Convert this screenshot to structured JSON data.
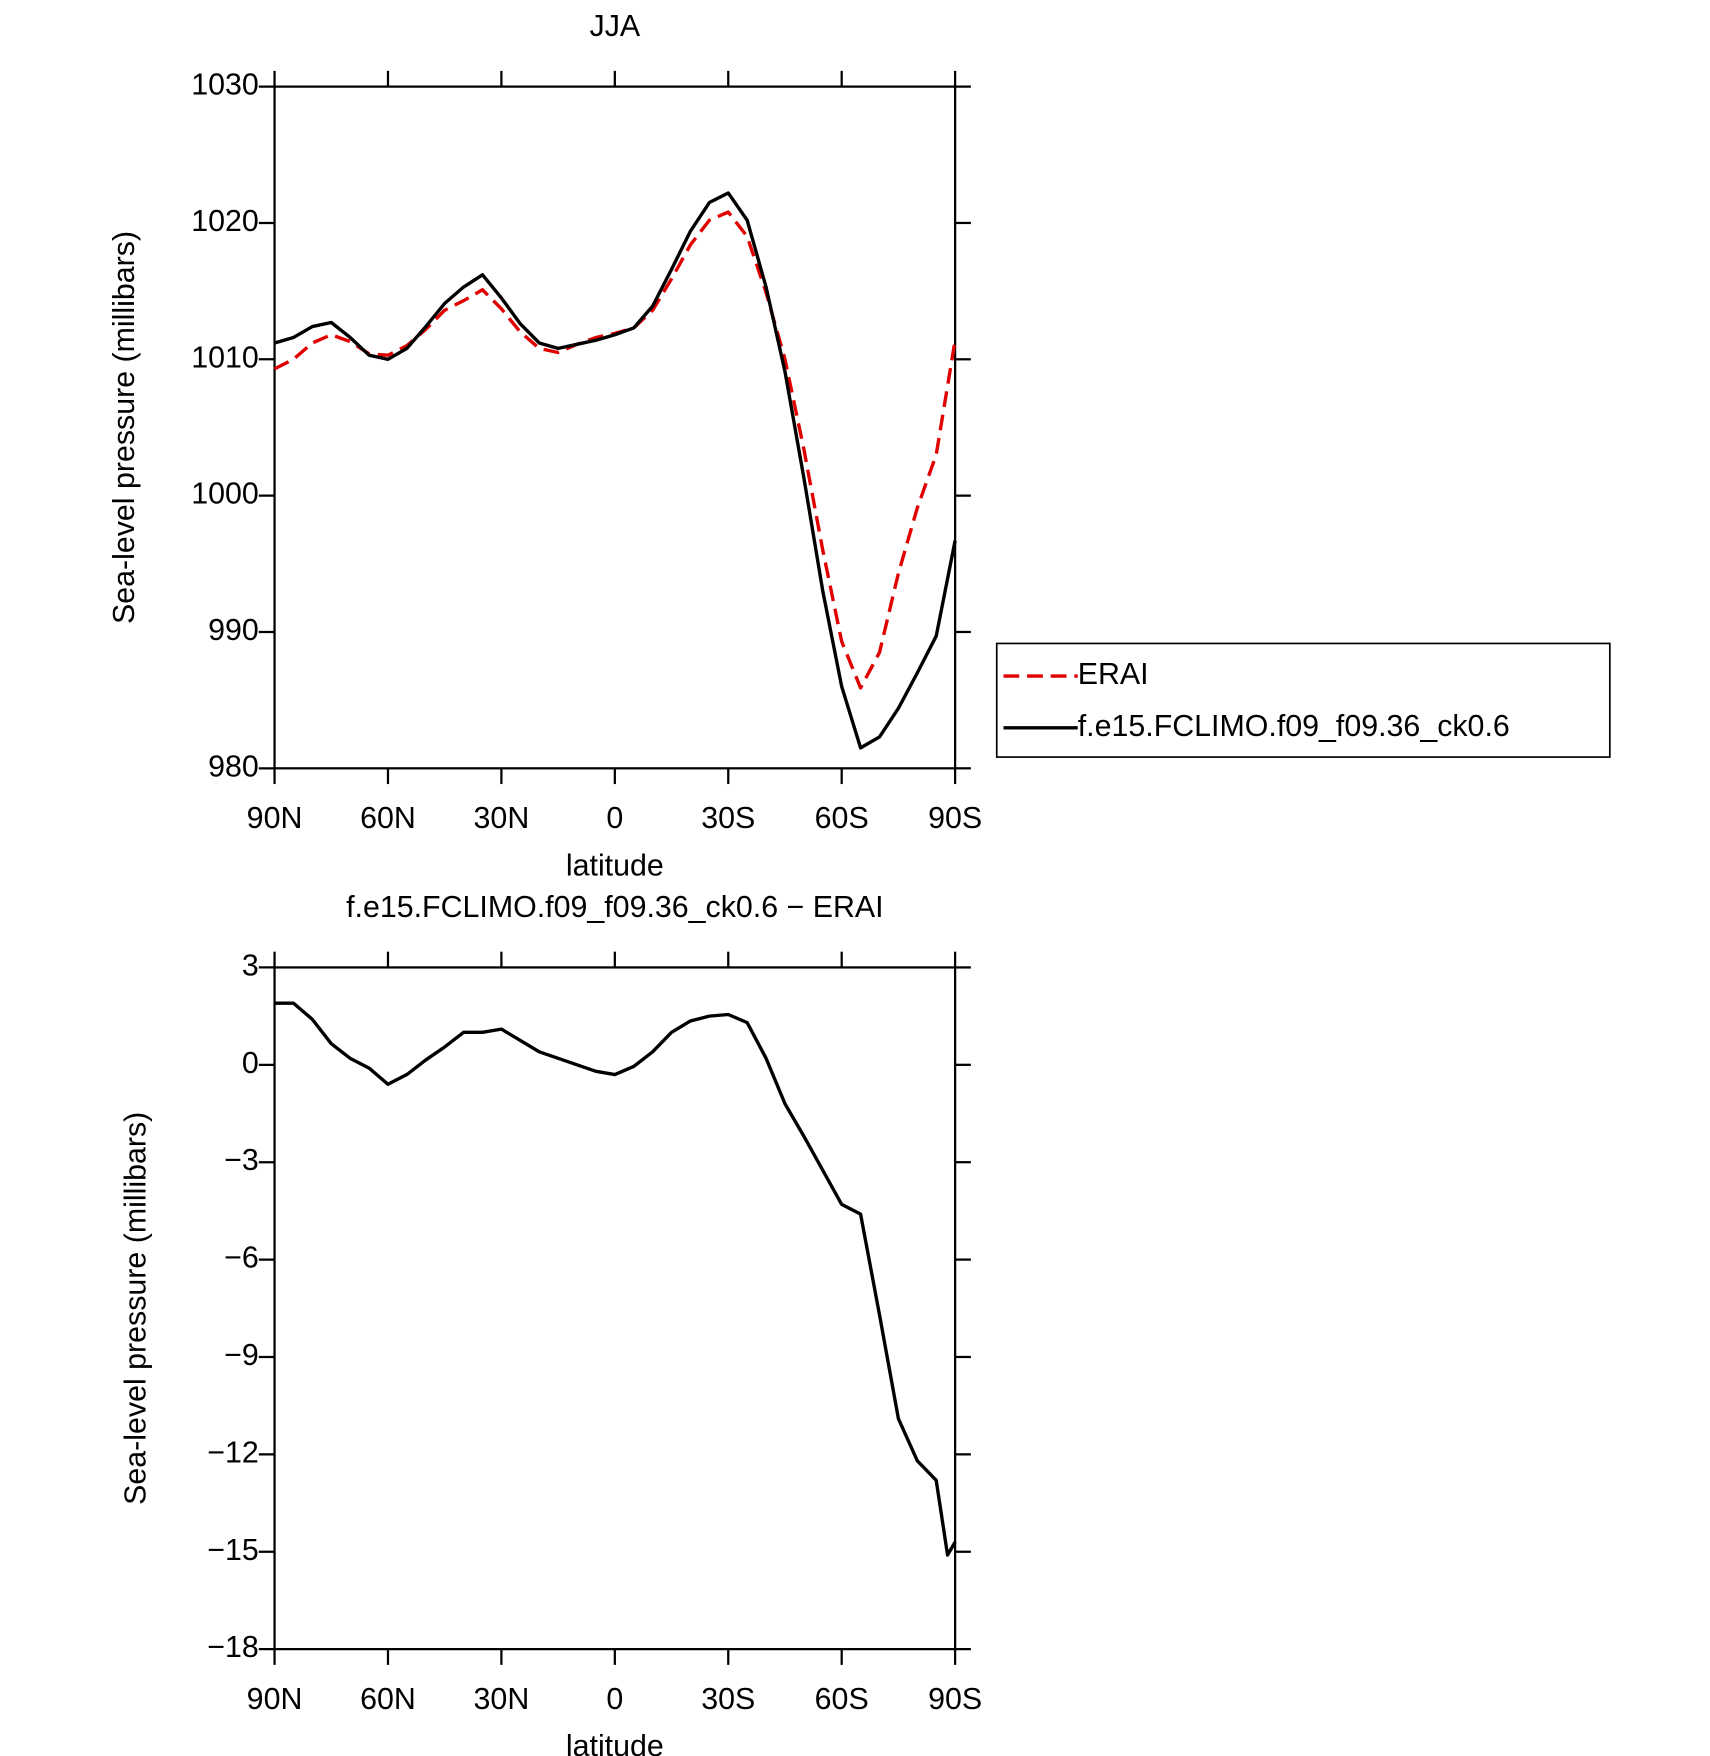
{
  "chart_data": [
    {
      "type": "line",
      "title": "JJA",
      "xlabel": "latitude",
      "ylabel": "Sea-level pressure (millibars)",
      "x": [
        90,
        85,
        80,
        75,
        70,
        65,
        60,
        55,
        50,
        45,
        40,
        35,
        30,
        25,
        20,
        15,
        10,
        5,
        0,
        -5,
        -10,
        -15,
        -20,
        -25,
        -30,
        -35,
        -40,
        -45,
        -50,
        -55,
        -60,
        -65,
        -70,
        -75,
        -80,
        -85,
        -90
      ],
      "series": [
        {
          "name": "ERAI",
          "color": "#e00000",
          "linestyle": "dashed",
          "values": [
            1009.3,
            1010.0,
            1011.2,
            1011.8,
            1011.3,
            1010.4,
            1010.3,
            1011.0,
            1012.2,
            1013.6,
            1014.3,
            1015.1,
            1013.7,
            1012.0,
            1010.8,
            1010.5,
            1011.1,
            1011.6,
            1011.9,
            1012.3,
            1013.6,
            1015.9,
            1018.4,
            1020.2,
            1020.8,
            1019.0,
            1014.9,
            1010.0,
            1003.4,
            996.0,
            989.3,
            985.9,
            988.5,
            994.3,
            999.1,
            1003.0,
            1011.4
          ]
        },
        {
          "name": "f.e15.FCLIMO.f09_f09.36_ck0.6",
          "color": "#000000",
          "linestyle": "solid",
          "values": [
            1011.2,
            1011.6,
            1012.4,
            1012.7,
            1011.6,
            1010.3,
            1010.0,
            1010.8,
            1012.4,
            1014.1,
            1015.3,
            1016.2,
            1014.5,
            1012.6,
            1011.2,
            1010.8,
            1011.1,
            1011.4,
            1011.8,
            1012.3,
            1013.9,
            1016.6,
            1019.4,
            1021.5,
            1022.2,
            1020.2,
            1015.3,
            1009.1,
            1001.3,
            993.0,
            986.0,
            981.5,
            982.3,
            984.4,
            987.0,
            989.7,
            996.7
          ]
        }
      ],
      "xlim": [
        90,
        -90
      ],
      "xticks": [
        {
          "value": 90,
          "label": "90N"
        },
        {
          "value": 60,
          "label": "60N"
        },
        {
          "value": 30,
          "label": "30N"
        },
        0,
        {
          "value": -30,
          "label": "30S"
        },
        {
          "value": -60,
          "label": "60S"
        },
        {
          "value": -90,
          "label": "90S"
        }
      ],
      "ylim": [
        980,
        1030
      ],
      "yticks": [
        980,
        990,
        1000,
        1010,
        1020,
        1030
      ],
      "legend": "right"
    },
    {
      "type": "line",
      "title": "f.e15.FCLIMO.f09_f09.36_ck0.6 − ERAI",
      "xlabel": "latitude",
      "ylabel": "Sea-level pressure (millibars)",
      "x": [
        90,
        85,
        80,
        75,
        70,
        65,
        60,
        55,
        50,
        45,
        40,
        35,
        30,
        25,
        20,
        15,
        10,
        5,
        0,
        -5,
        -10,
        -15,
        -20,
        -25,
        -30,
        -35,
        -40,
        -45,
        -50,
        -55,
        -60,
        -65,
        -70,
        -75,
        -80,
        -85,
        -88,
        -90
      ],
      "values": [
        1.9,
        1.9,
        1.4,
        0.65,
        0.2,
        -0.1,
        -0.6,
        -0.3,
        0.15,
        0.55,
        1.0,
        1.0,
        1.1,
        0.75,
        0.4,
        0.2,
        0,
        -0.2,
        -0.3,
        -0.05,
        0.4,
        1.0,
        1.35,
        1.5,
        1.55,
        1.3,
        0.2,
        -1.2,
        -2.2,
        -3.25,
        -4.3,
        -4.6,
        -7.7,
        -10.9,
        -12.2,
        -12.8,
        -15.1,
        -14.7
      ],
      "color": "#000000",
      "linestyle": "solid",
      "xlim": [
        90,
        -90
      ],
      "xticks": [
        {
          "value": 90,
          "label": "90N"
        },
        {
          "value": 60,
          "label": "60N"
        },
        {
          "value": 30,
          "label": "30N"
        },
        0,
        {
          "value": -30,
          "label": "30S"
        },
        {
          "value": -60,
          "label": "60S"
        },
        {
          "value": -90,
          "label": "90S"
        }
      ],
      "ylim": [
        -18,
        3
      ],
      "yticks": [
        {
          "value": -18,
          "label": "−18"
        },
        {
          "value": -15,
          "label": "−15"
        },
        {
          "value": -12,
          "label": "−12"
        },
        {
          "value": -9,
          "label": "−9"
        },
        {
          "value": -6,
          "label": "−6"
        },
        {
          "value": -3,
          "label": "−3"
        },
        0,
        3
      ]
    }
  ]
}
